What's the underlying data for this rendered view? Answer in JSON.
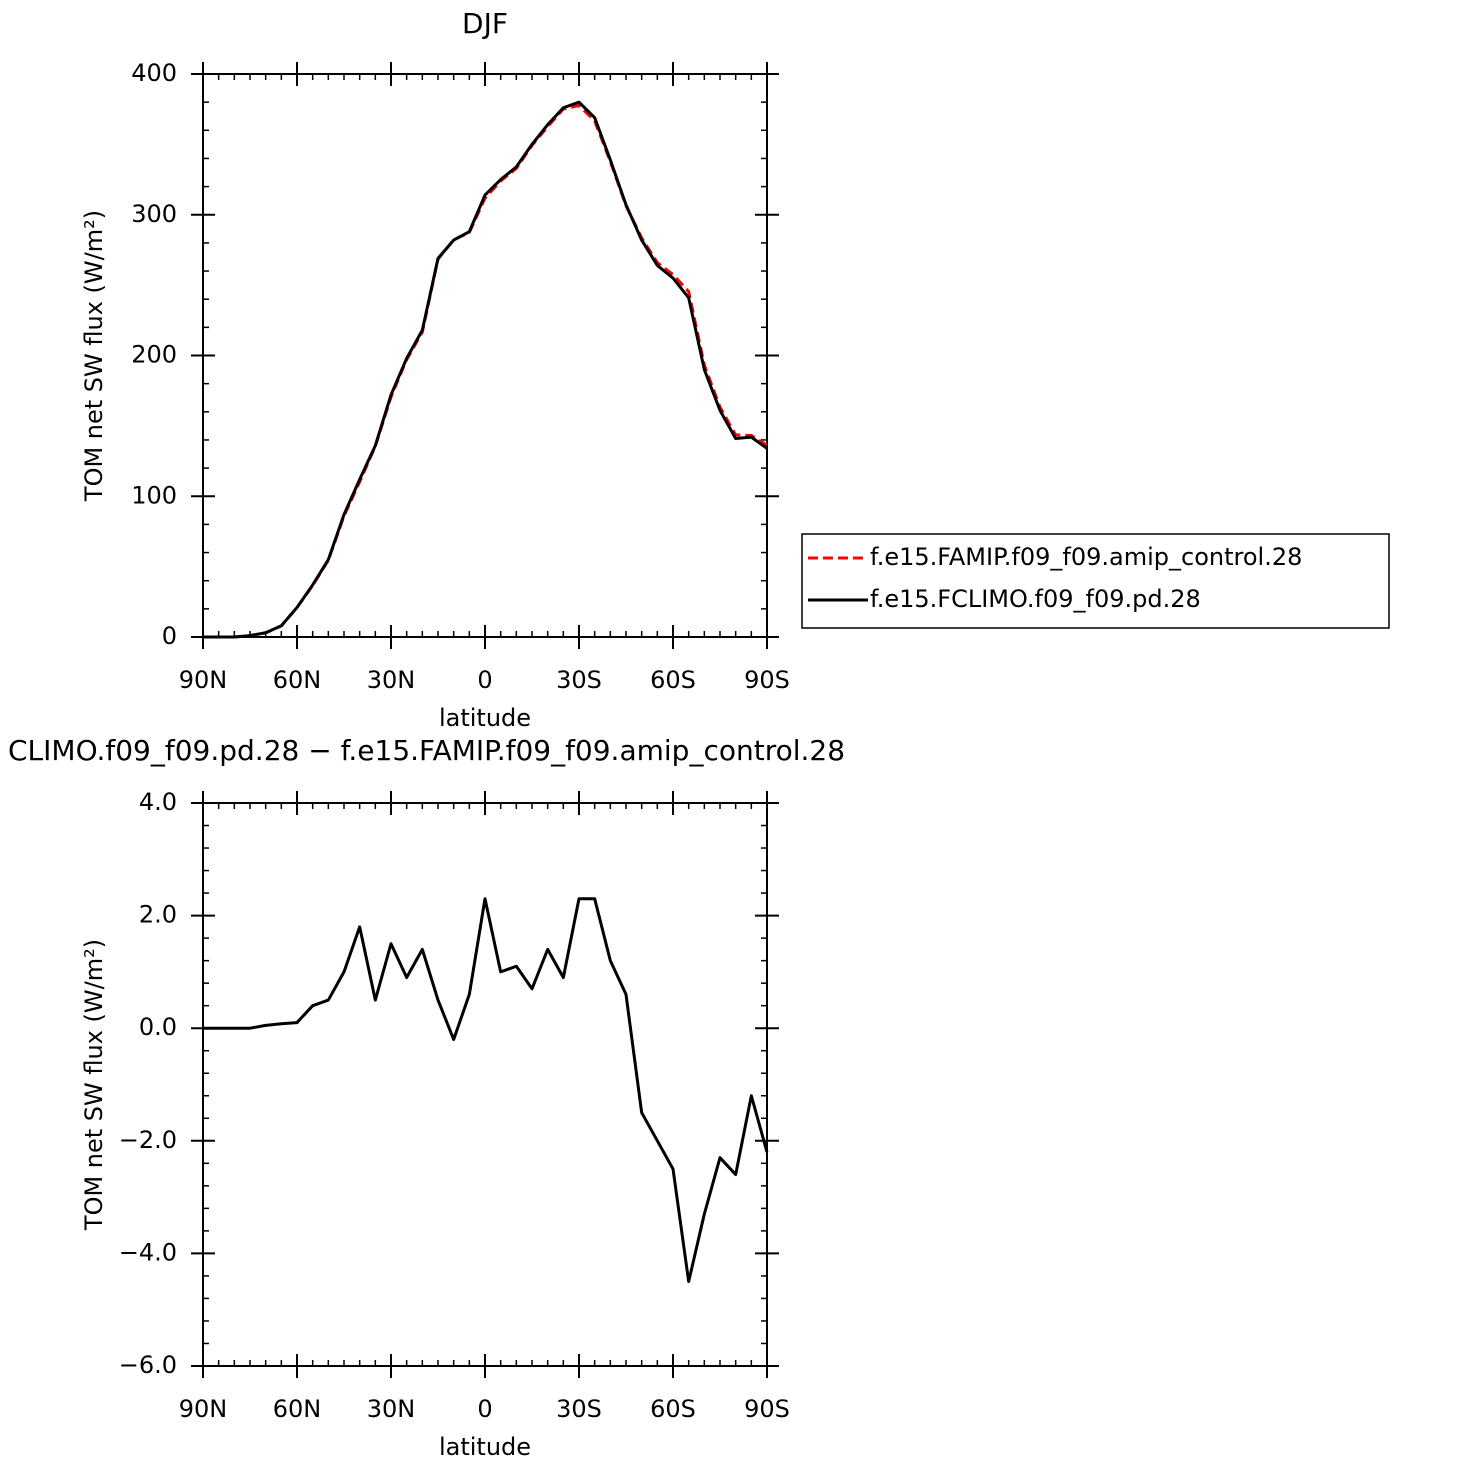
{
  "chart_data": [
    {
      "type": "line",
      "title": "DJF",
      "xlabel": "latitude",
      "ylabel": "TOM net SW flux (W/m²)",
      "x": [
        90,
        85,
        80,
        75,
        70,
        65,
        60,
        55,
        50,
        45,
        40,
        35,
        30,
        25,
        20,
        15,
        10,
        5,
        0,
        -5,
        -10,
        -15,
        -20,
        -25,
        -30,
        -35,
        -40,
        -45,
        -50,
        -55,
        -60,
        -65,
        -70,
        -75,
        -80,
        -85,
        -90
      ],
      "series": [
        {
          "name": "f.e15.FAMIP.f09_f09.amip_control.28",
          "color": "#ff0000",
          "dash": true,
          "values": [
            0,
            0,
            0,
            1,
            2.95,
            7.9,
            20.9,
            36.6,
            54.5,
            86,
            110.2,
            135.5,
            170.5,
            197.1,
            216.6,
            268.5,
            282.2,
            287.4,
            311.7,
            324,
            332.9,
            349.3,
            362.6,
            375.1,
            377.7,
            366.7,
            337.8,
            306.4,
            283.5,
            266,
            257.5,
            245.5,
            193.3,
            163.3,
            143.6,
            143.2,
            136.2
          ]
        },
        {
          "name": "f.e15.FCLIMO.f09_f09.pd.28",
          "color": "#000000",
          "dash": false,
          "values": [
            0,
            0,
            0,
            1,
            3,
            8,
            21,
            37,
            55,
            87,
            112,
            136,
            172,
            198,
            218,
            269,
            282,
            288,
            314,
            325,
            334,
            350,
            364,
            376,
            380,
            369,
            339,
            307,
            282,
            264,
            255,
            241,
            190,
            161,
            141,
            142,
            134
          ]
        }
      ],
      "xlim": [
        90,
        -90
      ],
      "xticks": [
        {
          "value": 90,
          "label": "90N"
        },
        {
          "value": 60,
          "label": "60N"
        },
        {
          "value": 30,
          "label": "30N"
        },
        0,
        {
          "value": -30,
          "label": "30S"
        },
        {
          "value": -60,
          "label": "60S"
        },
        {
          "value": -90,
          "label": "90S"
        }
      ],
      "ylim": [
        0,
        400
      ],
      "yticks": [
        0,
        100,
        200,
        300,
        400
      ],
      "legend": "right"
    },
    {
      "type": "line",
      "title": "CLIMO.f09_f09.pd.28 − f.e15.FAMIP.f09_f09.amip_control.28",
      "xlabel": "latitude",
      "ylabel": "TOM net SW flux (W/m²)",
      "x": [
        90,
        85,
        80,
        75,
        70,
        65,
        60,
        55,
        50,
        45,
        40,
        35,
        30,
        25,
        20,
        15,
        10,
        5,
        0,
        -5,
        -10,
        -15,
        -20,
        -25,
        -30,
        -35,
        -40,
        -45,
        -50,
        -55,
        -60,
        -65,
        -70,
        -75,
        -80,
        -85,
        -90
      ],
      "series": [
        {
          "color": "#000000",
          "dash": false,
          "values": [
            0,
            0,
            0,
            0,
            0.05,
            0.08,
            0.1,
            0.4,
            0.5,
            1.0,
            1.8,
            0.5,
            1.5,
            0.9,
            1.4,
            0.5,
            -0.2,
            0.6,
            2.3,
            1.0,
            1.1,
            0.7,
            1.4,
            0.9,
            2.3,
            2.3,
            1.2,
            0.6,
            -1.5,
            -2.0,
            -2.5,
            -4.5,
            -3.3,
            -2.3,
            -2.6,
            -1.2,
            -2.2
          ]
        }
      ],
      "xlim": [
        90,
        -90
      ],
      "xticks": [
        {
          "value": 90,
          "label": "90N"
        },
        {
          "value": 60,
          "label": "60N"
        },
        {
          "value": 30,
          "label": "30N"
        },
        0,
        {
          "value": -30,
          "label": "30S"
        },
        {
          "value": -60,
          "label": "60S"
        },
        {
          "value": -90,
          "label": "90S"
        }
      ],
      "ylim": [
        -6,
        4
      ],
      "yticks": [
        {
          "value": -6,
          "label": "−6.0"
        },
        {
          "value": -4,
          "label": "−4.0"
        },
        {
          "value": -2,
          "label": "−2.0"
        },
        {
          "value": 0,
          "label": "0.0"
        },
        {
          "value": 2,
          "label": "2.0"
        },
        {
          "value": 4,
          "label": "4.0"
        }
      ]
    }
  ]
}
